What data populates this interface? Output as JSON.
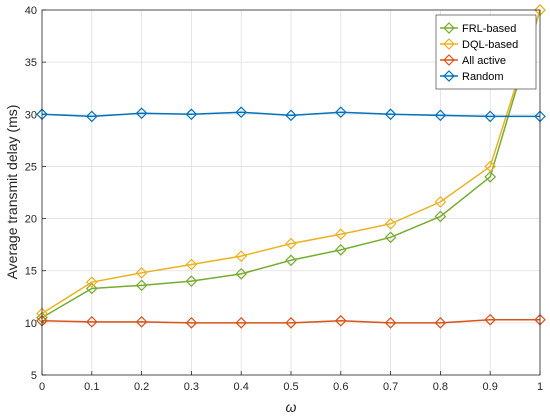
{
  "chart_data": {
    "type": "line",
    "title": "",
    "xlabel": "ω",
    "ylabel": "Average transmit delay (ms)",
    "xlim": [
      0,
      1
    ],
    "ylim": [
      5,
      40
    ],
    "x": [
      0,
      0.1,
      0.2,
      0.3,
      0.4,
      0.5,
      0.6,
      0.7,
      0.8,
      0.9,
      1
    ],
    "x_tick_labels": [
      "0",
      "0.1",
      "0.2",
      "0.3",
      "0.4",
      "0.5",
      "0.6",
      "0.7",
      "0.8",
      "0.9",
      "1"
    ],
    "y_tick_labels": [
      "5",
      "10",
      "15",
      "20",
      "25",
      "30",
      "35",
      "40"
    ],
    "y_ticks": [
      5,
      10,
      15,
      20,
      25,
      30,
      35,
      40
    ],
    "grid": true,
    "legend_position": "top-right",
    "marker": "diamond",
    "series": [
      {
        "name": "FRL-based",
        "color": "#77ac30",
        "values": [
          10.5,
          13.3,
          13.6,
          14.0,
          14.7,
          16.0,
          17.0,
          18.2,
          20.2,
          24.0,
          40.0
        ]
      },
      {
        "name": "DQL-based",
        "color": "#edb120",
        "values": [
          10.9,
          13.9,
          14.8,
          15.6,
          16.4,
          17.6,
          18.5,
          19.5,
          21.6,
          25.0,
          40.0
        ]
      },
      {
        "name": "All active",
        "color": "#d95319",
        "values": [
          10.2,
          10.1,
          10.1,
          10.0,
          10.0,
          10.0,
          10.2,
          10.0,
          10.0,
          10.3,
          10.3
        ]
      },
      {
        "name": "Random",
        "color": "#0072bd",
        "values": [
          30.0,
          29.8,
          30.1,
          30.0,
          30.2,
          29.9,
          30.2,
          30.0,
          29.9,
          29.8,
          29.8
        ]
      }
    ]
  }
}
